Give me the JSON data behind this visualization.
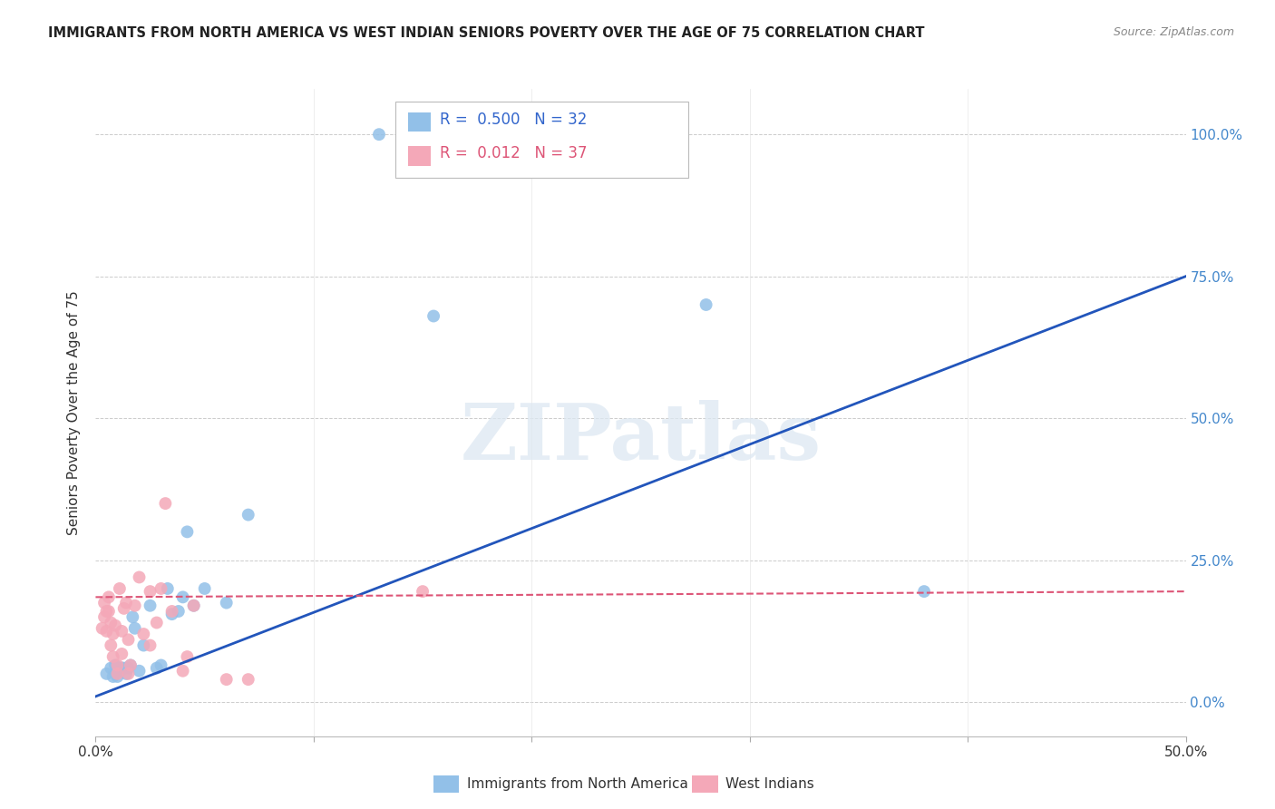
{
  "title": "IMMIGRANTS FROM NORTH AMERICA VS WEST INDIAN SENIORS POVERTY OVER THE AGE OF 75 CORRELATION CHART",
  "source": "Source: ZipAtlas.com",
  "ylabel": "Seniors Poverty Over the Age of 75",
  "xlim": [
    0.0,
    0.5
  ],
  "ylim": [
    -0.06,
    1.08
  ],
  "yticks": [
    0.0,
    0.25,
    0.5,
    0.75,
    1.0
  ],
  "ytick_labels": [
    "0.0%",
    "25.0%",
    "50.0%",
    "75.0%",
    "100.0%"
  ],
  "xticks": [
    0.0,
    0.1,
    0.2,
    0.3,
    0.4,
    0.5
  ],
  "xtick_labels": [
    "0.0%",
    "",
    "",
    "",
    "",
    "50.0%"
  ],
  "blue_R": 0.5,
  "blue_N": 32,
  "pink_R": 0.012,
  "pink_N": 37,
  "blue_color": "#92c0e8",
  "pink_color": "#f4a8b8",
  "blue_line_color": "#2255bb",
  "pink_line_color": "#dd5577",
  "watermark_text": "ZIPatlas",
  "legend_label_blue": "Immigrants from North America",
  "legend_label_pink": "West Indians",
  "blue_line_x0": 0.0,
  "blue_line_y0": 0.01,
  "blue_line_x1": 0.5,
  "blue_line_y1": 0.75,
  "pink_line_x0": 0.0,
  "pink_line_y0": 0.185,
  "pink_line_x1": 0.5,
  "pink_line_y1": 0.195,
  "blue_x": [
    0.005,
    0.007,
    0.008,
    0.009,
    0.01,
    0.01,
    0.011,
    0.012,
    0.013,
    0.014,
    0.015,
    0.016,
    0.017,
    0.018,
    0.02,
    0.022,
    0.025,
    0.028,
    0.03,
    0.033,
    0.035,
    0.038,
    0.04,
    0.042,
    0.045,
    0.05,
    0.06,
    0.07,
    0.13,
    0.155,
    0.28,
    0.38
  ],
  "blue_y": [
    0.05,
    0.06,
    0.045,
    0.065,
    0.045,
    0.06,
    0.055,
    0.06,
    0.06,
    0.05,
    0.06,
    0.065,
    0.15,
    0.13,
    0.055,
    0.1,
    0.17,
    0.06,
    0.065,
    0.2,
    0.155,
    0.16,
    0.185,
    0.3,
    0.17,
    0.2,
    0.175,
    0.33,
    1.0,
    0.68,
    0.7,
    0.195
  ],
  "pink_x": [
    0.003,
    0.004,
    0.004,
    0.005,
    0.005,
    0.006,
    0.006,
    0.007,
    0.007,
    0.008,
    0.008,
    0.009,
    0.01,
    0.01,
    0.011,
    0.012,
    0.012,
    0.013,
    0.014,
    0.015,
    0.015,
    0.016,
    0.018,
    0.02,
    0.022,
    0.025,
    0.025,
    0.028,
    0.03,
    0.032,
    0.035,
    0.04,
    0.042,
    0.045,
    0.06,
    0.07,
    0.15
  ],
  "pink_y": [
    0.13,
    0.15,
    0.175,
    0.125,
    0.16,
    0.16,
    0.185,
    0.1,
    0.14,
    0.08,
    0.12,
    0.135,
    0.05,
    0.065,
    0.2,
    0.085,
    0.125,
    0.165,
    0.175,
    0.05,
    0.11,
    0.065,
    0.17,
    0.22,
    0.12,
    0.1,
    0.195,
    0.14,
    0.2,
    0.35,
    0.16,
    0.055,
    0.08,
    0.17,
    0.04,
    0.04,
    0.195
  ]
}
